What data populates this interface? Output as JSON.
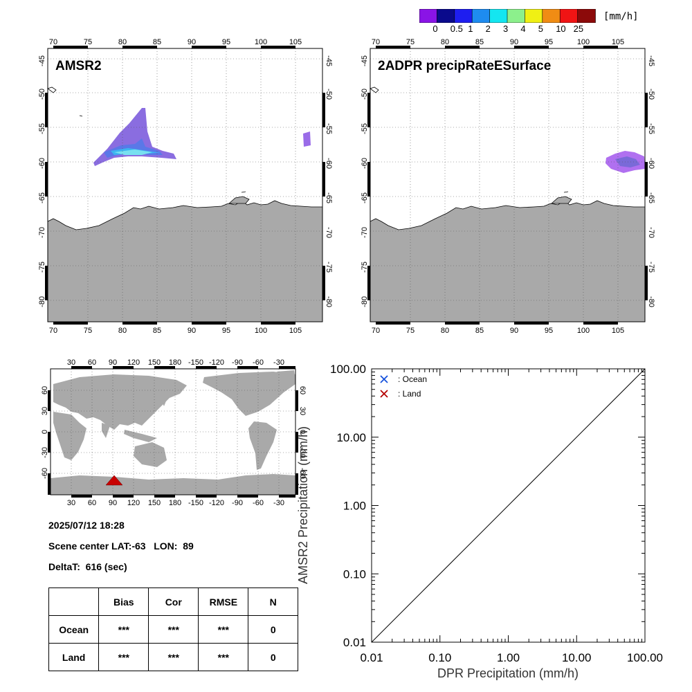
{
  "colorbar": {
    "unit": "[mm/h]",
    "labels": [
      "0",
      "0.5",
      "1",
      "2",
      "3",
      "4",
      "5",
      "10",
      "25"
    ],
    "colors": [
      "#8a14e6",
      "#0a0a8c",
      "#1e1ef0",
      "#1e8cf0",
      "#14e6f0",
      "#8cf08c",
      "#f0f014",
      "#f08c14",
      "#f01414",
      "#8c0a0a"
    ]
  },
  "map_amsr2": {
    "title": "AMSR2",
    "lon_ticks": [
      "70",
      "75",
      "80",
      "85",
      "90",
      "95",
      "100",
      "105"
    ],
    "lat_ticks": [
      "-45",
      "-50",
      "-55",
      "-60",
      "-65",
      "-70",
      "-75",
      "-80"
    ]
  },
  "map_dpr": {
    "title": "2ADPR precipRateESurface",
    "lon_ticks": [
      "70",
      "75",
      "80",
      "85",
      "90",
      "95",
      "100",
      "105"
    ],
    "lat_ticks": [
      "-45",
      "-50",
      "-55",
      "-60",
      "-65",
      "-70",
      "-75",
      "-80"
    ]
  },
  "world_map": {
    "top_ticks": [
      "30",
      "60",
      "90",
      "120",
      "150",
      "180",
      "-150",
      "-120",
      "-90",
      "-60",
      "-30"
    ],
    "bottom_ticks": [
      "30",
      "60",
      "90",
      "120",
      "150",
      "180",
      "-150",
      "-120",
      "-90",
      "-60",
      "-30"
    ],
    "left_ticks": [
      "60",
      "30",
      "0",
      "-30",
      "-60"
    ],
    "right_ticks": [
      "60",
      "30",
      "0",
      "-30",
      "-60"
    ],
    "marker_color": "#c80000"
  },
  "info": {
    "datetime": "2025/07/12 18:28",
    "scene_center": "Scene center LAT:-63   LON:  89",
    "delta_t": "DeltaT:  616 (sec)"
  },
  "stats_table": {
    "headers": [
      "",
      "Bias",
      "Cor",
      "RMSE",
      "N"
    ],
    "rows": [
      [
        "Ocean",
        "***",
        "***",
        "***",
        "0"
      ],
      [
        "Land",
        "***",
        "***",
        "***",
        "0"
      ]
    ]
  },
  "chart_data": {
    "type": "scatter",
    "xlabel": "DPR Precipitation (mm/h)",
    "ylabel": "AMSR2 Precipitation (mm/h)",
    "x_ticks": [
      "0.01",
      "0.10",
      "1.00",
      "10.00",
      "100.00"
    ],
    "y_ticks": [
      "0.01",
      "0.10",
      "1.00",
      "10.00",
      "100.00"
    ],
    "xlim": [
      0.01,
      100
    ],
    "ylim": [
      0.01,
      100
    ],
    "scale": "log",
    "legend_position": "top-left",
    "series": [
      {
        "name": ": Ocean",
        "color": "#1450dc",
        "marker": "x",
        "values": []
      },
      {
        "name": ": Land",
        "color": "#b40000",
        "marker": "x",
        "values": []
      }
    ],
    "reference_line": "1:1"
  }
}
